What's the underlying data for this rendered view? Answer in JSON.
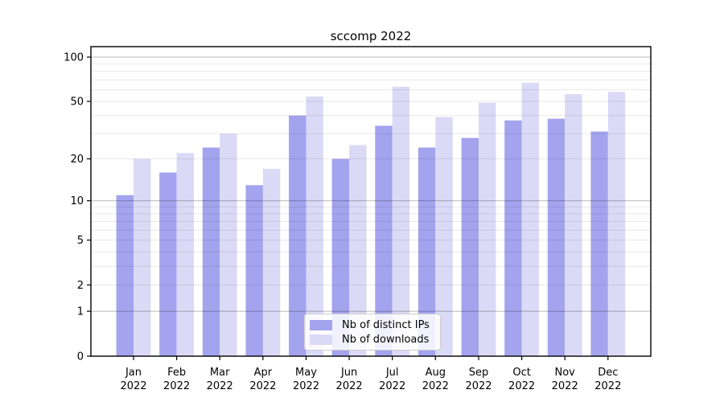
{
  "chart_data": {
    "type": "bar",
    "title": "sccomp 2022",
    "categories": [
      "Jan 2022",
      "Feb 2022",
      "Mar 2022",
      "Apr 2022",
      "May 2022",
      "Jun 2022",
      "Jul 2022",
      "Aug 2022",
      "Sep 2022",
      "Oct 2022",
      "Nov 2022",
      "Dec 2022"
    ],
    "series": [
      {
        "name": "Nb of distinct IPs",
        "color": "#a3a3ee",
        "values": [
          11,
          16,
          24,
          13,
          40,
          20,
          34,
          24,
          28,
          37,
          38,
          31
        ]
      },
      {
        "name": "Nb of downloads",
        "color": "#dadaf6",
        "values": [
          20,
          22,
          30,
          17,
          54,
          25,
          63,
          39,
          49,
          67,
          56,
          58
        ]
      }
    ],
    "xlabel": "",
    "ylabel": "",
    "yscale": "log1p",
    "yticks": [
      100,
      50,
      20,
      10,
      5,
      2,
      1,
      0
    ],
    "minor_gridlines": [
      2,
      3,
      4,
      5,
      6,
      7,
      8,
      9,
      20,
      30,
      40,
      50,
      60,
      70,
      80,
      90
    ],
    "major_gridlines": [
      1,
      10,
      100
    ],
    "ylim": [
      0,
      117
    ],
    "grid": true,
    "legend_position": "lower center",
    "colors": {
      "axis": "#000000",
      "major_grid": "rgba(0,0,0,0.28)",
      "minor_grid": "rgba(0,0,0,0.09)",
      "tick_label": "#000000"
    }
  }
}
